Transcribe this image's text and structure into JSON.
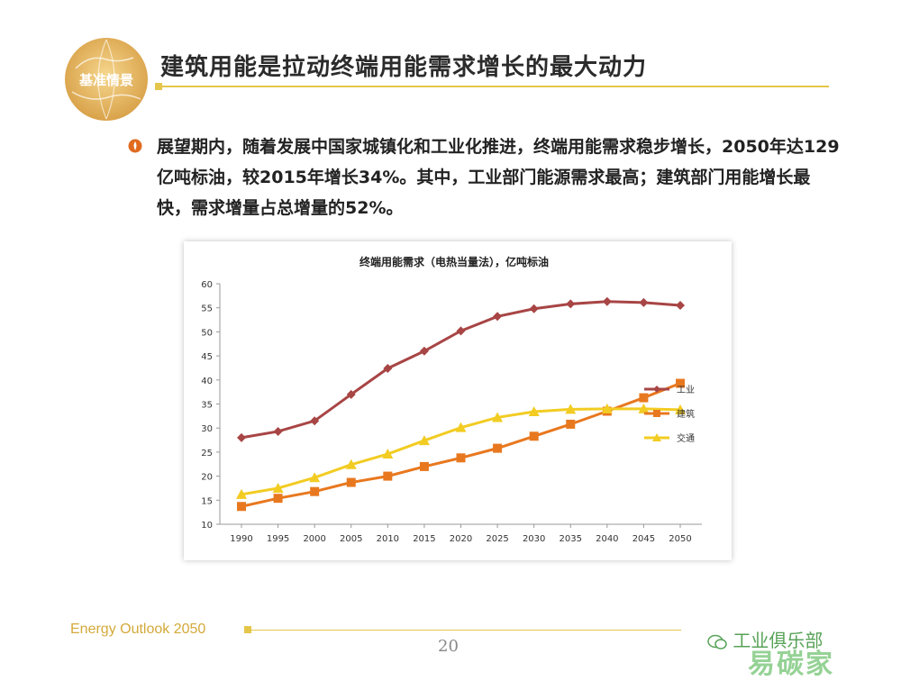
{
  "header": {
    "logo_text": "基准情景",
    "title": "建筑用能是拉动终端用能需求增长的最大动力"
  },
  "body": {
    "text": "展望期内，随着发展中国家城镇化和工业化推进，终端用能需求稳步增长，2050年达129亿吨标油，较2015年增长34%。其中，工业部门能源需求最高；建筑部门用能增长最快，需求增量占总增量的52%。"
  },
  "chart_data": {
    "type": "line",
    "title": "终端用能需求（电热当量法），亿吨标油",
    "xlabel": "",
    "ylabel": "",
    "categories": [
      "1990",
      "1995",
      "2000",
      "2005",
      "2010",
      "2015",
      "2020",
      "2025",
      "2030",
      "2035",
      "2040",
      "2045",
      "2050"
    ],
    "ylim": [
      10,
      60
    ],
    "yticks": [
      10,
      15,
      20,
      25,
      30,
      35,
      40,
      45,
      50,
      55,
      60
    ],
    "grid": false,
    "legend_position": "right",
    "series": [
      {
        "name": "工业",
        "color": "#a84545",
        "marker": "diamond",
        "values": [
          28.0,
          29.3,
          31.5,
          37.0,
          42.4,
          46.0,
          50.2,
          53.2,
          54.8,
          55.8,
          56.3,
          56.1,
          55.5
        ]
      },
      {
        "name": "建筑",
        "color": "#e8781f",
        "marker": "square",
        "values": [
          13.7,
          15.4,
          16.8,
          18.7,
          20.0,
          22.0,
          23.8,
          25.8,
          28.3,
          30.8,
          33.5,
          36.3,
          39.3
        ]
      },
      {
        "name": "交通",
        "color": "#f2cc22",
        "marker": "triangle",
        "values": [
          16.2,
          17.5,
          19.7,
          22.4,
          24.6,
          27.4,
          30.1,
          32.2,
          33.4,
          33.9,
          34.0,
          34.0,
          33.8
        ]
      }
    ]
  },
  "footer": {
    "left_text": "Energy Outlook 2050",
    "page_number": "20",
    "watermark_text": "工业俱乐部",
    "watermark_big": "易碳家"
  },
  "colors": {
    "accent": "#e4c64a",
    "logo_gold": "#d9a84a",
    "bullet": "#e06a1f"
  },
  "icons": {
    "logo": "globe-logo-icon",
    "bullet": "flame-bullet-icon",
    "watermark": "wechat-icon"
  }
}
